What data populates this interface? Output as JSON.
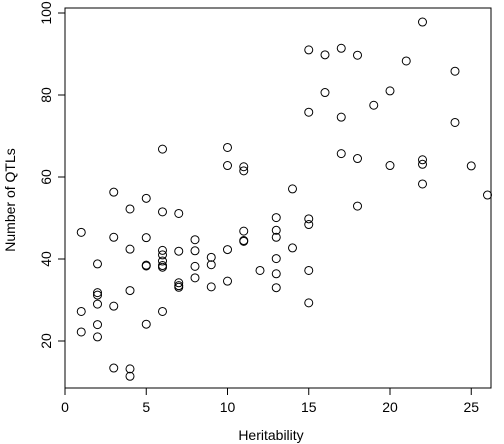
{
  "chart_data": {
    "type": "scatter",
    "title": "",
    "xlabel": "Heritability",
    "ylabel": "Number of QTLs",
    "xlim": [
      0,
      26.5
    ],
    "ylim": [
      10,
      100
    ],
    "xticks": [
      0,
      5,
      10,
      15,
      20,
      25
    ],
    "yticks": [
      20,
      40,
      60,
      80,
      100
    ],
    "box": true,
    "grid": false,
    "marker": "open-circle",
    "point_color": "#000000",
    "points": [
      [
        1,
        46.5
      ],
      [
        1,
        27.2
      ],
      [
        1,
        22.2
      ],
      [
        2,
        38.8
      ],
      [
        2,
        31.8
      ],
      [
        2,
        31.2
      ],
      [
        2,
        29.0
      ],
      [
        2,
        24.0
      ],
      [
        2,
        21.0
      ],
      [
        3,
        56.3
      ],
      [
        3,
        45.3
      ],
      [
        3,
        28.5
      ],
      [
        3,
        13.4
      ],
      [
        4,
        52.2
      ],
      [
        4,
        42.4
      ],
      [
        4,
        32.3
      ],
      [
        4,
        13.2
      ],
      [
        4,
        11.4
      ],
      [
        5,
        54.8
      ],
      [
        5,
        45.2
      ],
      [
        5,
        38.5
      ],
      [
        5,
        38.3
      ],
      [
        5,
        24.1
      ],
      [
        6,
        66.8
      ],
      [
        6,
        51.5
      ],
      [
        6,
        42.1
      ],
      [
        6,
        41.0
      ],
      [
        6,
        39.5
      ],
      [
        6,
        38.4
      ],
      [
        6,
        38.0
      ],
      [
        6,
        27.2
      ],
      [
        7,
        51.1
      ],
      [
        7,
        41.9
      ],
      [
        7,
        34.2
      ],
      [
        7,
        33.5
      ],
      [
        7,
        33.1
      ],
      [
        8,
        44.7
      ],
      [
        8,
        42.0
      ],
      [
        8,
        38.2
      ],
      [
        8,
        35.4
      ],
      [
        9,
        40.4
      ],
      [
        9,
        38.6
      ],
      [
        9,
        33.2
      ],
      [
        10,
        67.2
      ],
      [
        10,
        62.8
      ],
      [
        10,
        42.3
      ],
      [
        10,
        34.6
      ],
      [
        11,
        62.5
      ],
      [
        11,
        61.5
      ],
      [
        11,
        46.8
      ],
      [
        11,
        44.5
      ],
      [
        11,
        44.3
      ],
      [
        12,
        37.2
      ],
      [
        13,
        50.1
      ],
      [
        13,
        47.0
      ],
      [
        13,
        45.3
      ],
      [
        13,
        40.1
      ],
      [
        13,
        36.4
      ],
      [
        13,
        33.0
      ],
      [
        14,
        57.1
      ],
      [
        14,
        42.7
      ],
      [
        15,
        91.0
      ],
      [
        15,
        75.8
      ],
      [
        15,
        49.8
      ],
      [
        15,
        48.4
      ],
      [
        15,
        37.2
      ],
      [
        15,
        29.3
      ],
      [
        16,
        89.8
      ],
      [
        16,
        80.6
      ],
      [
        17,
        91.4
      ],
      [
        17,
        74.6
      ],
      [
        17,
        65.7
      ],
      [
        18,
        89.7
      ],
      [
        18,
        64.5
      ],
      [
        18,
        52.9
      ],
      [
        19,
        77.5
      ],
      [
        20,
        81.0
      ],
      [
        20,
        62.8
      ],
      [
        21,
        88.3
      ],
      [
        22,
        97.8
      ],
      [
        22,
        64.2
      ],
      [
        22,
        63.1
      ],
      [
        22,
        58.3
      ],
      [
        24,
        85.8
      ],
      [
        24,
        73.3
      ],
      [
        25,
        62.7
      ],
      [
        26,
        55.6
      ]
    ]
  }
}
